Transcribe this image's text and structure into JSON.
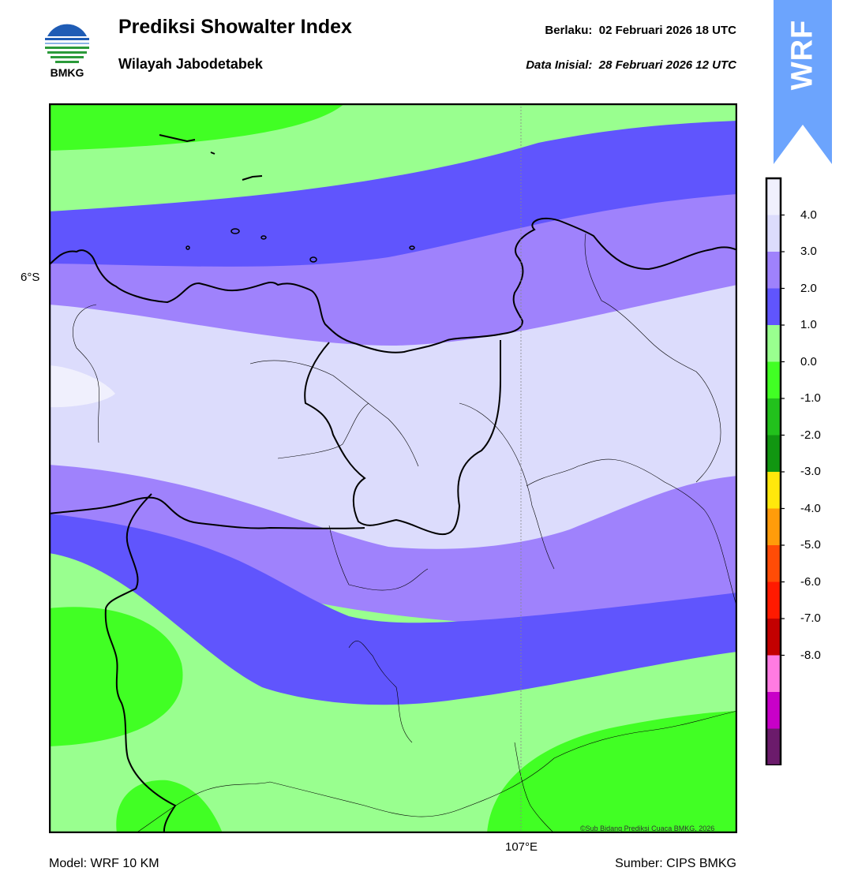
{
  "header": {
    "logo_text": "BMKG",
    "title": "Prediksi Showalter Index",
    "subtitle": "Wilayah Jabodetabek",
    "valid_label": "Berlaku:",
    "valid_time": "02 Februari 2026 18 UTC",
    "init_label": "Data Inisial:",
    "init_time": "28 Februari 2026 12 UTC"
  },
  "map": {
    "lat_label": "6°S",
    "lon_label": "107°E",
    "credit": "©Sub Bidang Prediksi Cuaca BMKG, 2026",
    "fill_colors": {
      "band_3_4": "#dcdcfc",
      "band_4_5": "#f0f0fd",
      "band_2_3": "#9f82fc",
      "band_1_2": "#6055fd",
      "band_0_1": "#99ff8f",
      "band_m1_0": "#41ff24"
    }
  },
  "colorbar": {
    "model_badge": "WRF",
    "badge_color": "#6ca4fd",
    "ticks": [
      "4.0",
      "3.0",
      "2.0",
      "1.0",
      "0.0",
      "-1.0",
      "-2.0",
      "-3.0",
      "-4.0",
      "-5.0",
      "-6.0",
      "-7.0",
      "-8.0"
    ],
    "colors": [
      "#f0f0fd",
      "#dcdcfc",
      "#9f82fc",
      "#6055fd",
      "#99ff8f",
      "#41ff24",
      "#22c11c",
      "#119611",
      "#ffe80c",
      "#ff9c0a",
      "#ff4c06",
      "#ff1a00",
      "#c30000",
      "#ff7be2",
      "#c800c8",
      "#6b1b6b"
    ]
  },
  "footer": {
    "model": "Model: WRF 10 KM",
    "source": "Sumber: CIPS BMKG"
  }
}
